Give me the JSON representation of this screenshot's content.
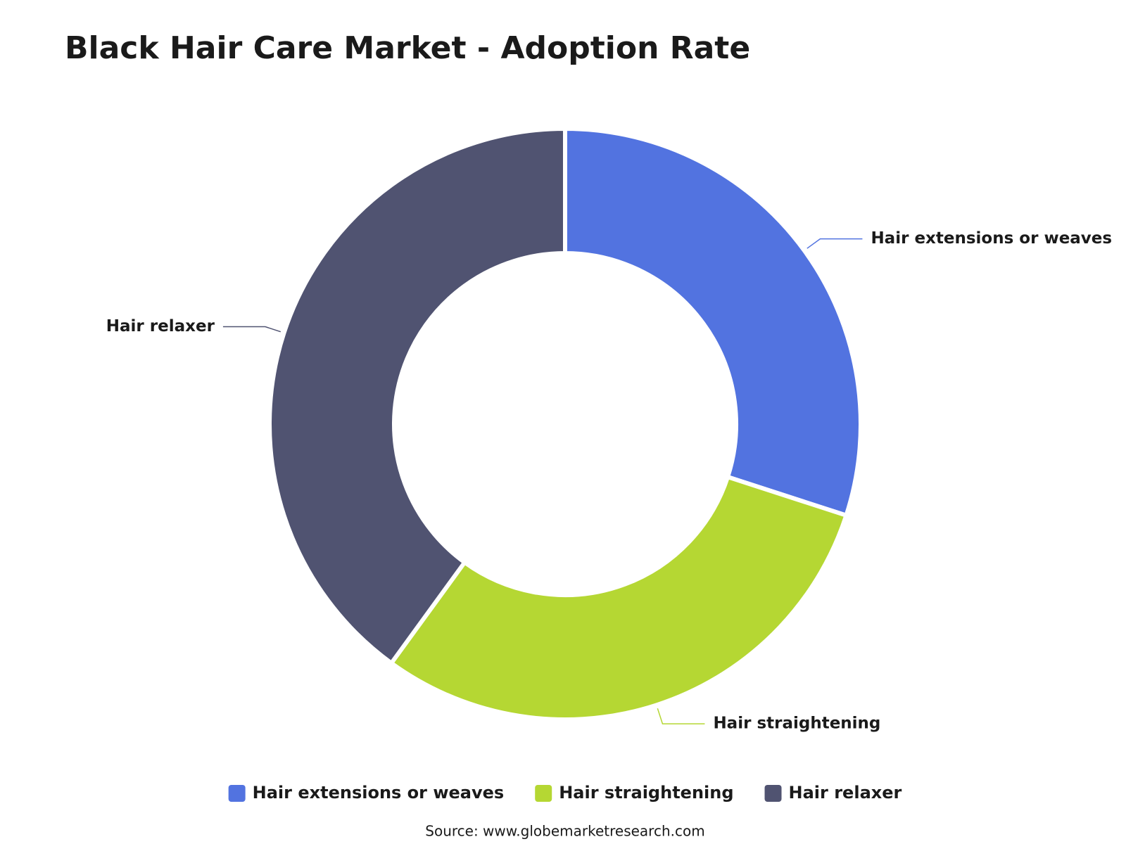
{
  "chart_data": {
    "type": "pie",
    "title": "Black Hair Care Market - Adoption Rate",
    "categories": [
      "Hair extensions or weaves",
      "Hair straightening",
      "Hair relaxer"
    ],
    "values": [
      30,
      30,
      40
    ],
    "colors": [
      "#5273e0",
      "#b5d733",
      "#505371"
    ],
    "source": "Source: www.globemarketresearch.com"
  }
}
